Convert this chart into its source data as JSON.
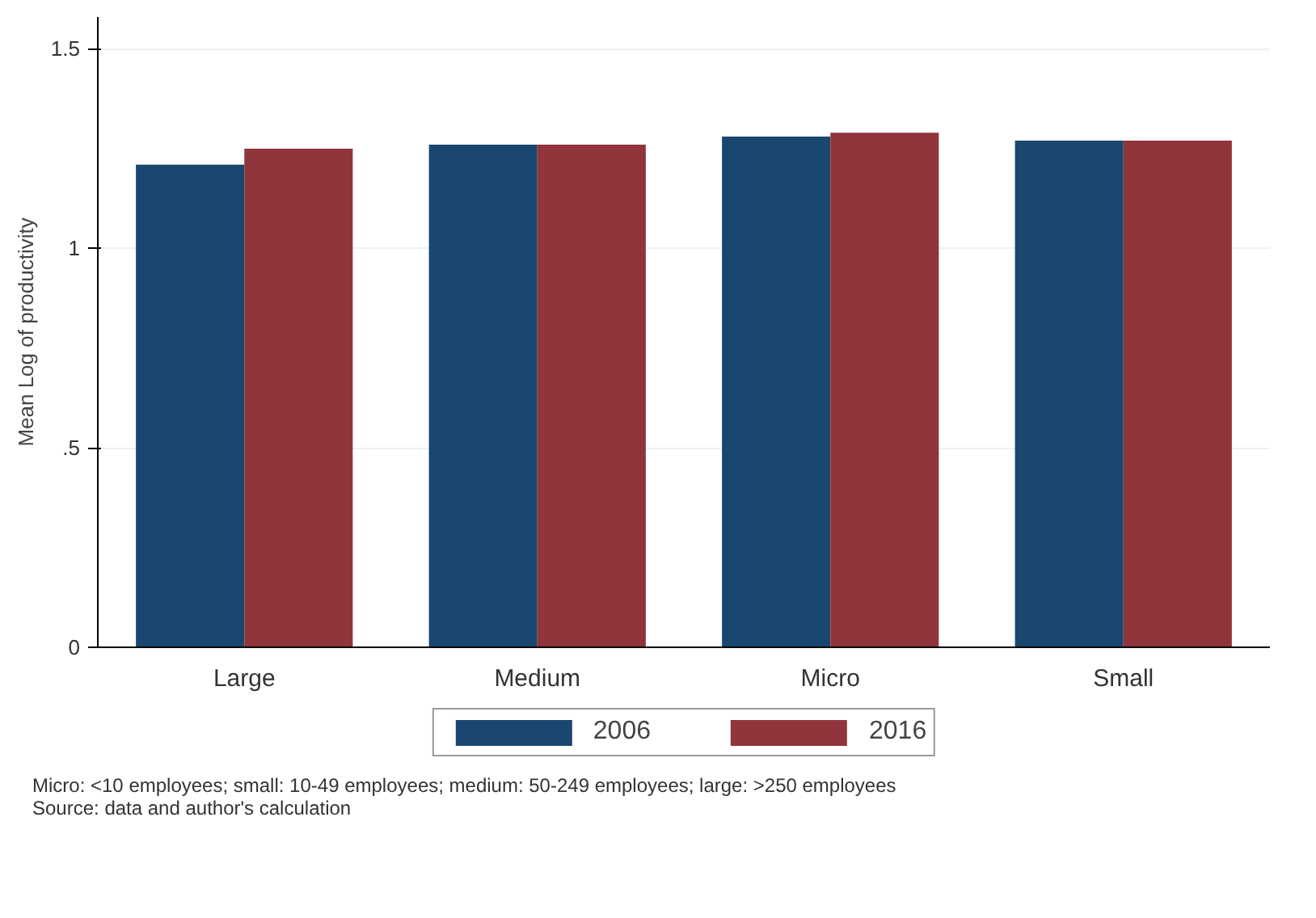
{
  "chart_data": {
    "type": "bar",
    "ylabel": "Mean Log of productivity",
    "categories": [
      "Large",
      "Medium",
      "Micro",
      "Small"
    ],
    "series": [
      {
        "name": "2006",
        "color": "#1a476f",
        "values": [
          1.21,
          1.26,
          1.28,
          1.27
        ]
      },
      {
        "name": "2016",
        "color": "#90353b",
        "values": [
          1.25,
          1.26,
          1.29,
          1.27
        ]
      }
    ],
    "ylim": [
      0,
      1.58
    ],
    "yticks": [
      0,
      {
        "value": 0.5,
        "label": ".5"
      },
      1,
      1.5
    ],
    "grid": "y",
    "legend": "bottom",
    "annotations": [
      "Micro: <10 employees; small: 10-49 employees; medium: 50-249 employees; large: >250 employees",
      "Source: data and author's calculation"
    ]
  }
}
